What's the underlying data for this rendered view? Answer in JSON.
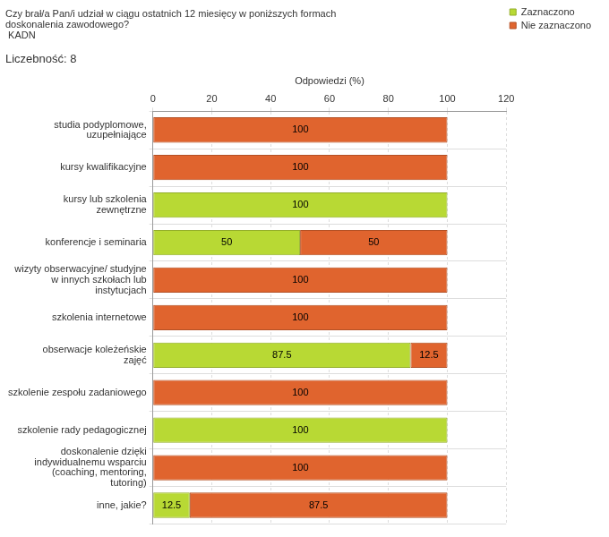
{
  "chart_data": {
    "type": "bar",
    "orientation": "horizontal",
    "stacked": true,
    "title": "Czy brał/a Pan/i udział w ciągu ostatnich 12 miesięcy w poniższych formach\ndoskonalenia zawodowego?\n KADN",
    "subtitle": "Liczebność: 8",
    "x_label": "Odpowiedzi (%)",
    "categories": [
      "studia podyplomowe,\nuzupełniające",
      "kursy kwalifikacyjne",
      "kursy lub szkolenia\nzewnętrzne",
      "konferencje i seminaria",
      "wizyty obserwacyjne/ studyjne\nw innych szkołach lub\ninstytucjach",
      "szkolenia internetowe",
      "obserwacje koleżeńskie\nzajęć",
      "szkolenie zespołu zadaniowego",
      "szkolenie rady pedagogicznej",
      "doskonalenie dzięki\nindywidualnemu wsparciu\n(coaching, mentoring,\ntutoring)",
      "inne, jakie?"
    ],
    "series": [
      {
        "name": "Zaznaczono",
        "color": "#b8d934",
        "values": [
          0,
          0,
          100,
          50,
          0,
          0,
          87.5,
          0,
          100,
          0,
          12.5
        ]
      },
      {
        "name": "Nie zaznaczono",
        "color": "#e0642e",
        "values": [
          100,
          100,
          0,
          50,
          100,
          100,
          12.5,
          100,
          0,
          100,
          87.5
        ]
      }
    ],
    "xlim": [
      0,
      120
    ],
    "xticks": [
      0,
      20,
      40,
      60,
      80,
      100,
      120
    ],
    "grid": true,
    "legend": "upper right",
    "data_labels": true
  }
}
